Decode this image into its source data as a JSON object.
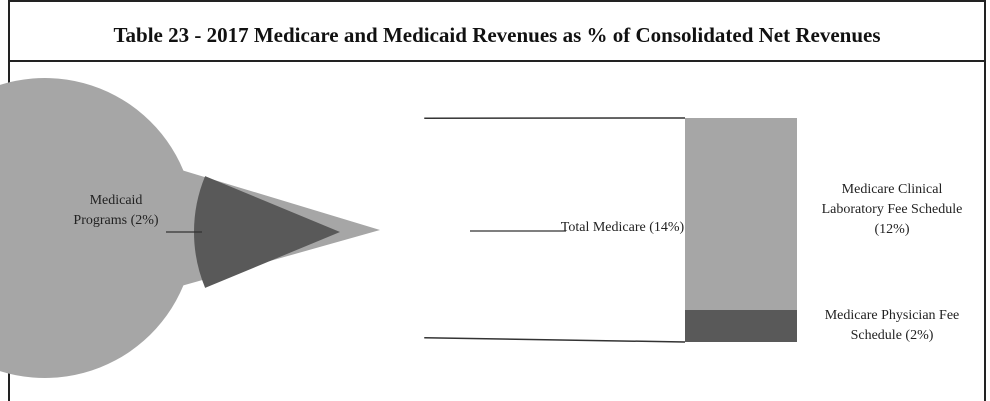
{
  "chart_data": {
    "type": "bar-of-pie",
    "title": "Table 23 -  2017 Medicare and Medicaid Revenues as % of Consolidated Net Revenues",
    "pie": {
      "categories": [
        "Medicaid Programs (2%)",
        "Total Medicare (14%)"
      ],
      "values": [
        2,
        14
      ],
      "colors": [
        "#595959",
        "#a6a6a6"
      ]
    },
    "bar": {
      "categories": [
        "Medicare Clinical Laboratory Fee Schedule (12%)",
        "Medicare Physician Fee Schedule (2%)"
      ],
      "values": [
        12,
        2
      ],
      "colors": [
        "#a6a6a6",
        "#595959"
      ]
    }
  }
}
